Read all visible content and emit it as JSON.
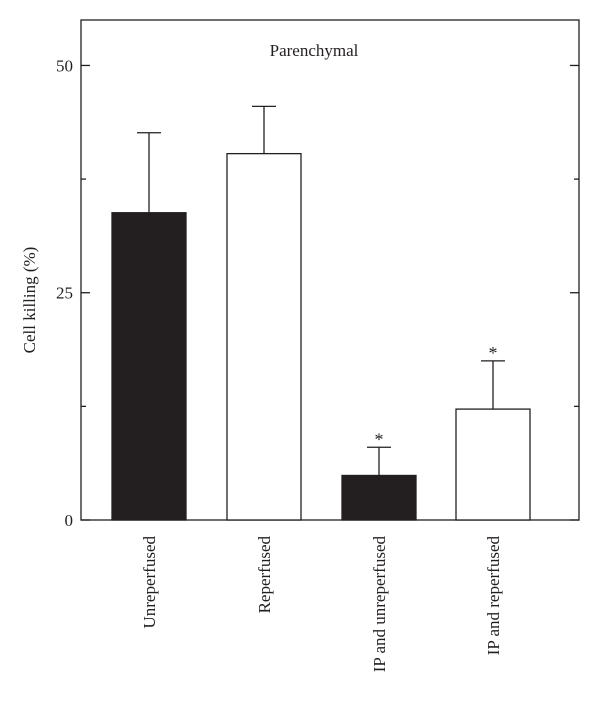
{
  "chart_data": {
    "type": "bar",
    "title": "Parenchymal",
    "xlabel": "",
    "ylabel": "Cell killing (%)",
    "ylim": [
      0,
      55
    ],
    "yticks_major": [
      0,
      25,
      50
    ],
    "yticks_minor": [
      12.5,
      37.5
    ],
    "grid": false,
    "legend": "none",
    "categories": [
      "Unreperfused",
      "Reperfused",
      "IP and unreperfused",
      "IP and reperfused"
    ],
    "values": [
      33.8,
      40.3,
      4.9,
      12.2
    ],
    "errors": [
      8.8,
      5.2,
      3.1,
      5.3
    ],
    "significance": [
      "",
      "",
      "*",
      "*"
    ],
    "fills": [
      "#231f20",
      "#ffffff",
      "#231f20",
      "#ffffff"
    ]
  }
}
